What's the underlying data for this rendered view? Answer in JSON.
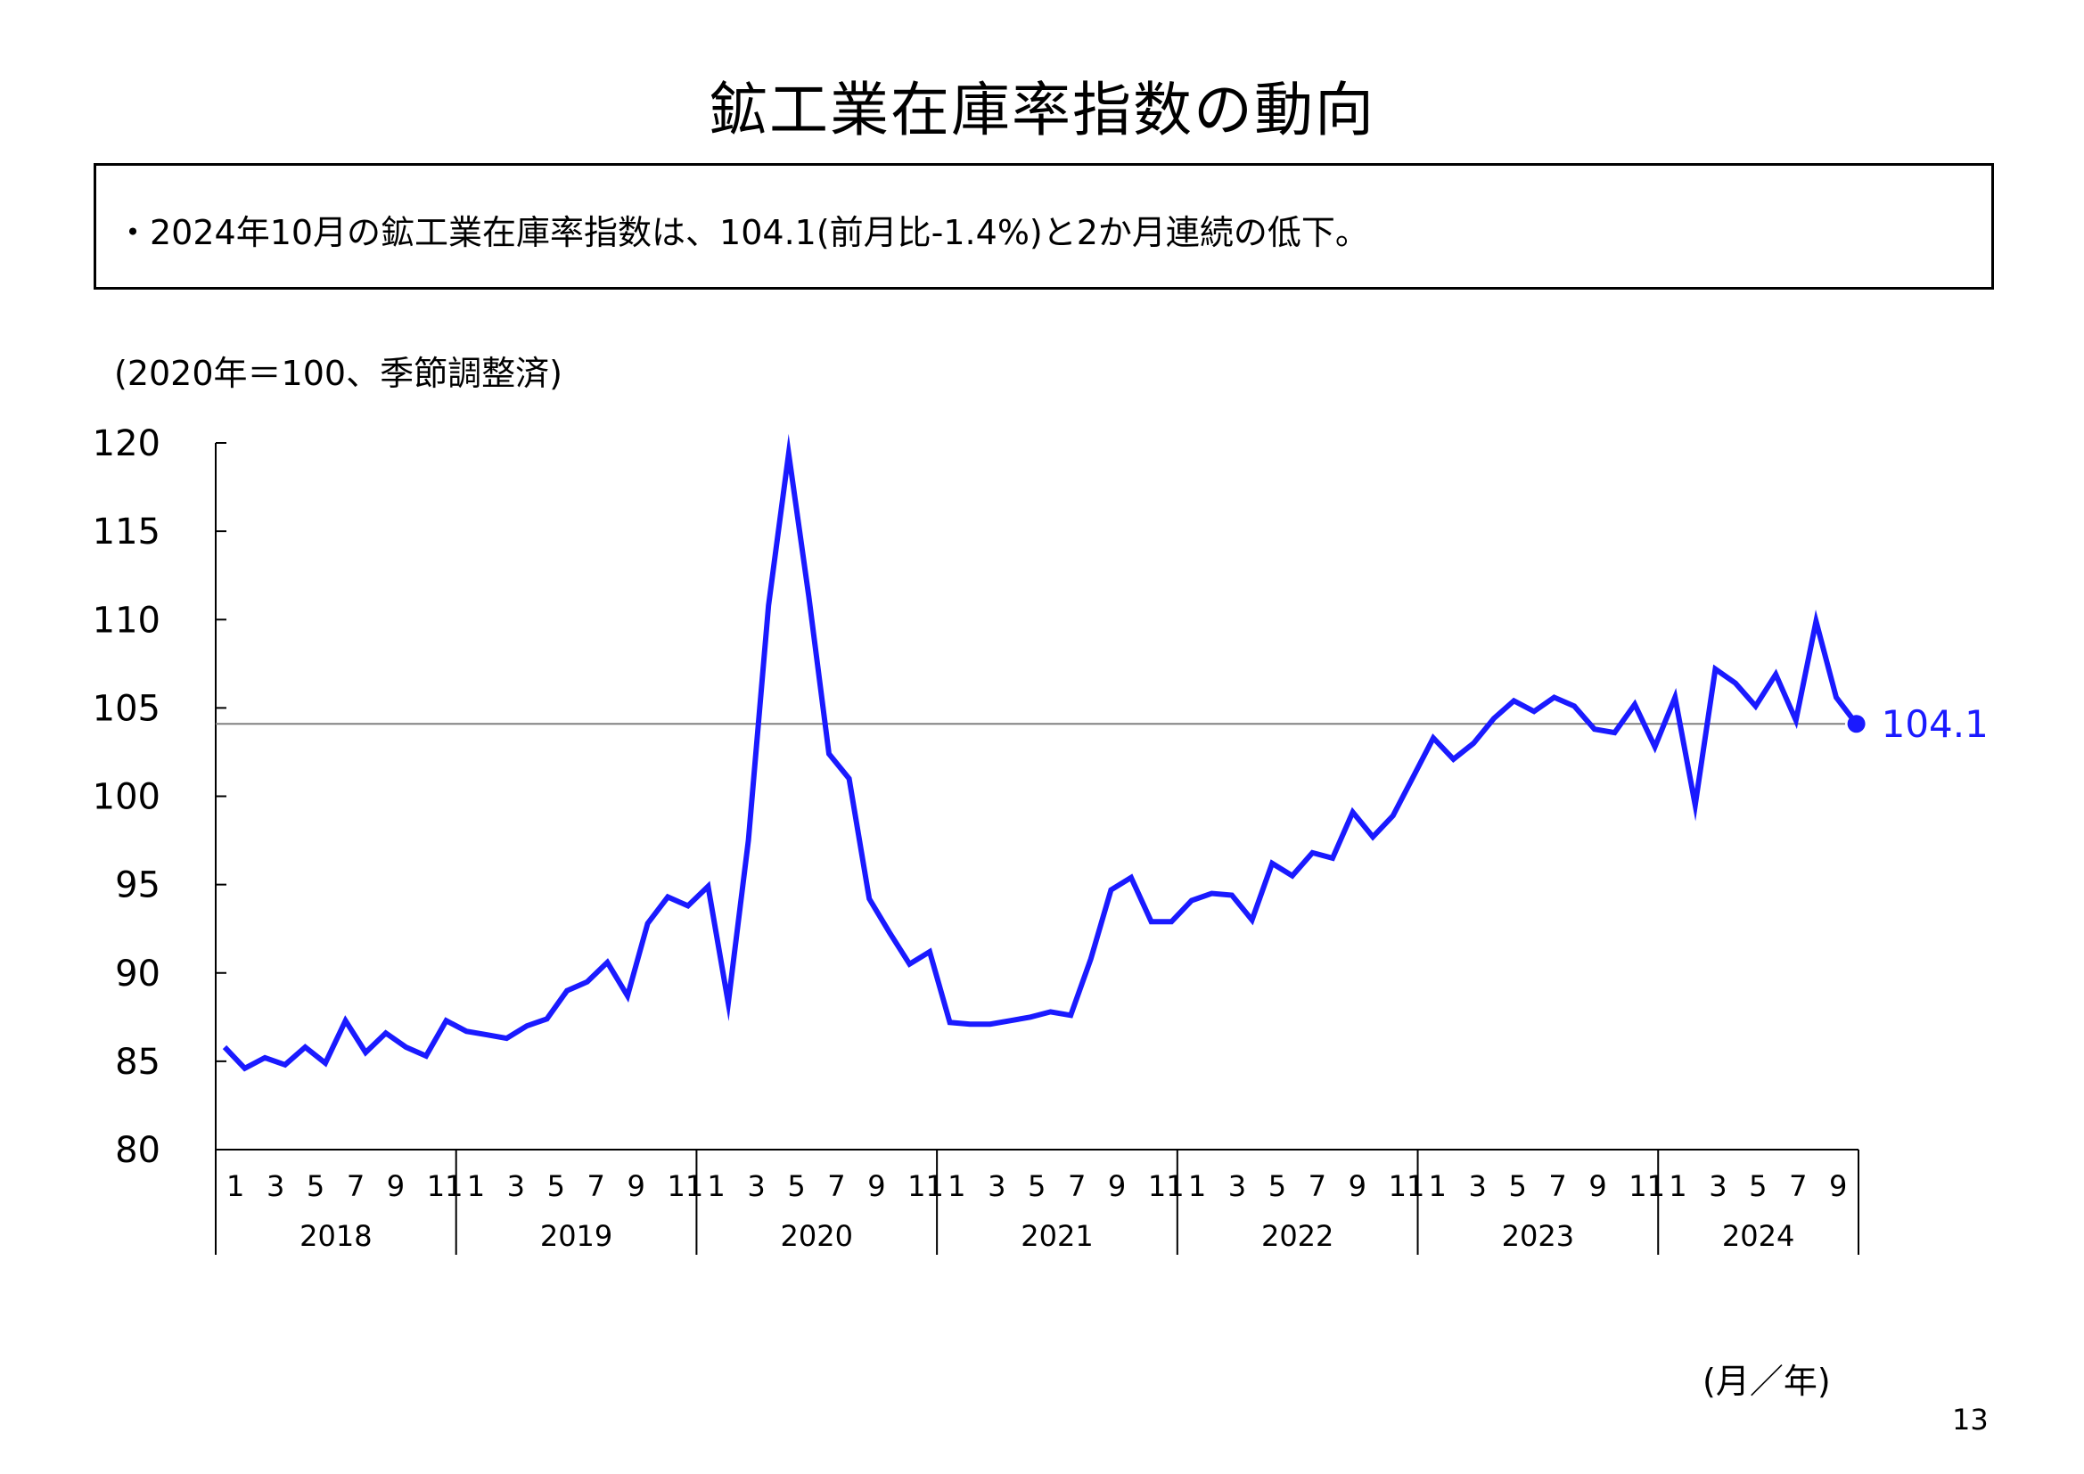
{
  "title": "鉱工業在庫率指数の動向",
  "summary": "・2024年10月の鉱工業在庫率指数は、104.1(前月比-1.4%)と2か月連続の低下。",
  "unit_note": "(2020年＝100、季節調整済)",
  "axis_unit": "(月／年)",
  "page_number": "13",
  "colors": {
    "series": "#1a1aff",
    "reference_line": "#808080",
    "axis": "#000000"
  },
  "chart_data": {
    "type": "line",
    "ylim": [
      80,
      120
    ],
    "yticks": [
      "80",
      "85",
      "90",
      "95",
      "100",
      "105",
      "110",
      "115",
      "120"
    ],
    "month_tick_labels": [
      "1",
      "3",
      "5",
      "7",
      "9",
      "11"
    ],
    "years": [
      "2018",
      "2019",
      "2020",
      "2021",
      "2022",
      "2023",
      "2024"
    ],
    "series": [
      {
        "values": [
          85.8,
          84.6,
          85.2,
          84.8,
          85.8,
          84.9,
          87.3,
          85.5,
          86.6,
          85.8,
          85.3,
          87.3,
          86.7,
          86.5,
          86.3,
          87.0,
          87.4,
          89.0,
          89.5,
          90.6,
          88.7,
          92.8,
          94.3,
          93.8,
          94.9,
          88.3,
          97.5,
          110.8,
          119.4,
          111.3,
          102.4,
          101.0,
          94.2,
          92.3,
          90.5,
          91.2,
          87.2,
          87.1,
          87.1,
          87.3,
          87.5,
          87.8,
          87.6,
          90.8,
          94.7,
          95.4,
          92.9,
          92.9,
          94.1,
          94.5,
          94.4,
          93.0,
          96.2,
          95.5,
          96.8,
          96.5,
          99.1,
          97.7,
          98.9,
          101.1,
          103.3,
          102.1,
          103.0,
          104.4,
          105.4,
          104.8,
          105.6,
          105.1,
          103.8,
          103.6,
          105.2,
          102.8,
          105.6,
          99.5,
          107.2,
          106.4,
          105.1,
          106.9,
          104.3,
          109.9,
          105.6,
          104.1
        ]
      }
    ],
    "latest_label": "104.1",
    "reference_value": 104.1
  }
}
